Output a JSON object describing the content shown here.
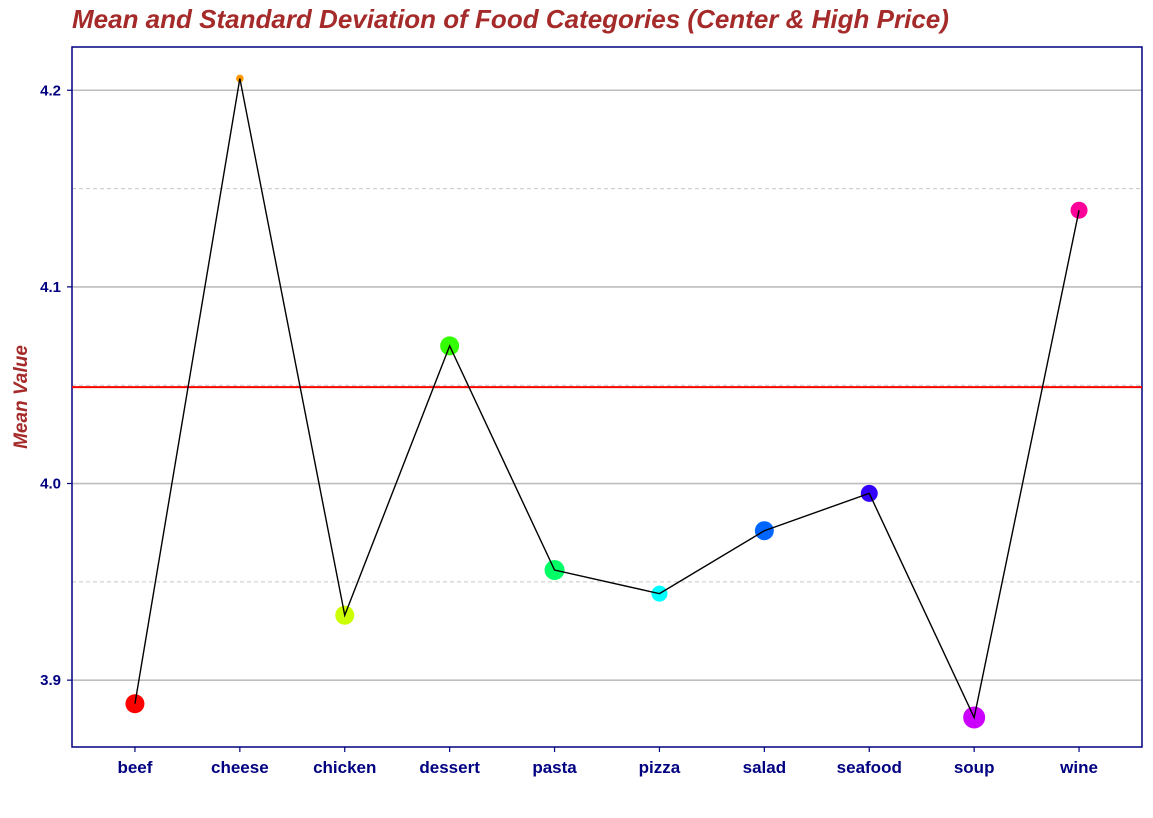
{
  "chart_data": {
    "type": "line",
    "title": "Mean and Standard Deviation of Food Categories (Center & High Price)",
    "xlabel": "",
    "ylabel": "Mean Value",
    "categories": [
      "beef",
      "cheese",
      "chicken",
      "dessert",
      "pasta",
      "pizza",
      "salad",
      "seafood",
      "soup",
      "wine"
    ],
    "values": [
      3.888,
      4.206,
      3.933,
      4.07,
      3.956,
      3.944,
      3.976,
      3.995,
      3.881,
      4.139
    ],
    "sd_point_sizes_relative": [
      0.75,
      0.18,
      0.75,
      0.75,
      0.8,
      0.6,
      0.75,
      0.65,
      0.9,
      0.65
    ],
    "point_colors": [
      "#ff0000",
      "#ff9900",
      "#ccff00",
      "#33ff00",
      "#00ff66",
      "#00ffff",
      "#0066ff",
      "#3300ff",
      "#cc00ff",
      "#ff0099"
    ],
    "reference_line": {
      "value": 4.049,
      "color": "#ff0000"
    },
    "ylim": [
      3.866,
      4.222
    ],
    "yticks": [
      3.9,
      4.0,
      4.1,
      4.2
    ],
    "ytick_labels": [
      "3.9",
      "4.0",
      "4.1",
      "4.2"
    ],
    "grid": true,
    "legend": "none"
  }
}
